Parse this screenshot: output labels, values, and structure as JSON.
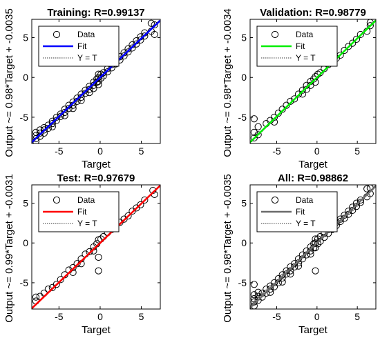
{
  "chart_data": [
    {
      "type": "scatter",
      "title": "Training: R=0.99137",
      "xlabel": "Target",
      "ylabel": "Output ~= 0.98*Target + -0.0035",
      "xlim": [
        -8.3,
        7.3
      ],
      "ylim": [
        -8.3,
        7.3
      ],
      "xticks": [
        "-5",
        "0",
        "5"
      ],
      "yticks": [
        "-5",
        "0",
        "5"
      ],
      "slope": 0.98,
      "intercept": -0.0035,
      "fit_color": "#0000ff",
      "legend": [
        "Data",
        "Fit",
        "Y = T"
      ],
      "legend_position": "top-left",
      "grid": false,
      "series": [
        {
          "name": "Data",
          "x": [
            -7.8,
            -7.8,
            -7.8,
            -7.8,
            -7.3,
            -7.3,
            -7.3,
            -6.8,
            -6.8,
            -6.8,
            -6.3,
            -6.3,
            -5.8,
            -5.8,
            -5.8,
            -5.3,
            -5.3,
            -4.8,
            -4.8,
            -4.3,
            -4.3,
            -4.3,
            -3.8,
            -3.8,
            -3.3,
            -3.3,
            -3.3,
            -2.8,
            -2.8,
            -2.3,
            -2.3,
            -2.3,
            -1.8,
            -1.8,
            -1.3,
            -1.3,
            -1.3,
            -0.8,
            -0.8,
            -0.8,
            -0.4,
            -0.4,
            -0.2,
            -0.2,
            -0.2,
            -0.2,
            0.1,
            0.1,
            0.4,
            0.4,
            0.9,
            0.9,
            1.4,
            1.4,
            1.9,
            1.9,
            2.4,
            2.4,
            2.9,
            2.9,
            3.4,
            3.4,
            3.9,
            3.9,
            4.4,
            4.4,
            4.9,
            4.9,
            5.4,
            5.4,
            6.2,
            6.2,
            6.6,
            6.6
          ],
          "y": [
            -6.9,
            -7.3,
            -7.7,
            -8.0,
            -6.6,
            -7.0,
            -7.4,
            -6.3,
            -6.6,
            -7.0,
            -6.0,
            -6.4,
            -5.5,
            -5.8,
            -6.2,
            -5.0,
            -5.4,
            -4.6,
            -4.9,
            -4.0,
            -4.4,
            -4.8,
            -3.5,
            -3.9,
            -3.1,
            -3.5,
            -3.9,
            -2.6,
            -3.0,
            -2.1,
            -2.5,
            -2.9,
            -1.6,
            -2.0,
            -1.1,
            -1.5,
            -1.9,
            -0.6,
            -1.0,
            -1.4,
            -0.2,
            -0.6,
            0.4,
            0.0,
            -0.5,
            -0.9,
            0.4,
            -0.1,
            0.6,
            0.2,
            1.1,
            0.7,
            1.6,
            1.2,
            2.1,
            1.7,
            2.6,
            2.2,
            3.1,
            2.7,
            3.6,
            3.2,
            4.1,
            3.7,
            4.6,
            4.2,
            5.1,
            4.7,
            5.6,
            5.2,
            6.8,
            5.8,
            6.6,
            5.4
          ]
        }
      ]
    },
    {
      "type": "scatter",
      "title": "Validation: R=0.98779",
      "xlabel": "Target",
      "ylabel": "Output ~= 0.98*Target + -0.0034",
      "xlim": [
        -8.3,
        7.3
      ],
      "ylim": [
        -8.3,
        7.3
      ],
      "xticks": [
        "-5",
        "0",
        "5"
      ],
      "yticks": [
        "-5",
        "0",
        "5"
      ],
      "slope": 0.98,
      "intercept": -0.0034,
      "fit_color": "#00ee00",
      "legend": [
        "Data",
        "Fit",
        "Y = T"
      ],
      "legend_position": "top-left",
      "grid": false,
      "series": [
        {
          "name": "Data",
          "x": [
            -7.8,
            -7.8,
            -7.8,
            -7.3,
            -7.3,
            -6.3,
            -5.8,
            -5.3,
            -5.3,
            -4.8,
            -4.3,
            -3.8,
            -3.3,
            -2.8,
            -2.3,
            -1.8,
            -1.8,
            -1.3,
            -1.3,
            -0.8,
            -0.8,
            -0.4,
            -0.2,
            -0.2,
            0.1,
            0.4,
            0.9,
            1.4,
            1.9,
            2.4,
            2.9,
            3.4,
            3.9,
            4.4,
            4.9,
            5.4,
            6.2,
            6.6,
            6.6
          ],
          "y": [
            -5.2,
            -6.9,
            -7.6,
            -6.2,
            -7.2,
            -5.8,
            -5.4,
            -5.0,
            -5.6,
            -4.5,
            -4.0,
            -3.5,
            -3.0,
            -2.7,
            -2.1,
            -1.6,
            -2.1,
            -1.0,
            -1.5,
            -0.5,
            -1.0,
            -0.2,
            0.1,
            -0.6,
            0.4,
            0.6,
            1.1,
            1.6,
            1.9,
            2.4,
            2.8,
            3.4,
            3.9,
            4.3,
            4.8,
            5.4,
            5.8,
            6.5,
            6.9
          ]
        }
      ]
    },
    {
      "type": "scatter",
      "title": "Test: R=0.97679",
      "xlabel": "Target",
      "ylabel": "Output ~= 0.99*Target + -0.0031",
      "xlim": [
        -8.3,
        7.3
      ],
      "ylim": [
        -8.3,
        7.3
      ],
      "xticks": [
        "-5",
        "0",
        "5"
      ],
      "yticks": [
        "-5",
        "0",
        "5"
      ],
      "slope": 0.99,
      "intercept": -0.0031,
      "fit_color": "#ff0000",
      "legend": [
        "Data",
        "Fit",
        "Y = T"
      ],
      "legend_position": "top-left",
      "grid": false,
      "series": [
        {
          "name": "Data",
          "x": [
            -7.8,
            -7.8,
            -7.3,
            -6.8,
            -6.3,
            -5.8,
            -5.3,
            -4.8,
            -4.3,
            -3.8,
            -3.3,
            -3.3,
            -2.8,
            -2.3,
            -2.3,
            -1.8,
            -1.3,
            -0.8,
            -0.8,
            -0.4,
            -0.2,
            -0.2,
            -0.2,
            0.1,
            0.4,
            0.9,
            1.4,
            1.9,
            2.4,
            2.9,
            3.4,
            3.9,
            4.4,
            4.9,
            5.4,
            6.4,
            6.6
          ],
          "y": [
            -6.8,
            -7.3,
            -6.7,
            -6.3,
            -5.8,
            -5.6,
            -5.2,
            -4.6,
            -4.0,
            -3.4,
            -3.1,
            -3.7,
            -2.6,
            -2.0,
            -2.6,
            -1.4,
            -1.1,
            -0.5,
            -1.0,
            -0.1,
            0.4,
            -1.8,
            -3.5,
            0.5,
            0.8,
            1.3,
            1.7,
            2.2,
            2.6,
            3.0,
            3.4,
            4.0,
            4.4,
            4.8,
            5.4,
            6.6,
            6.1
          ]
        }
      ]
    },
    {
      "type": "scatter",
      "title": "All: R=0.98862",
      "xlabel": "Target",
      "ylabel": "Output ~= 0.98*Target + -0.0035",
      "xlim": [
        -8.3,
        7.3
      ],
      "ylim": [
        -8.3,
        7.3
      ],
      "xticks": [
        "-5",
        "0",
        "5"
      ],
      "yticks": [
        "-5",
        "0",
        "5"
      ],
      "slope": 0.98,
      "intercept": -0.0035,
      "fit_color": "#6b6b6b",
      "legend": [
        "Data",
        "Fit",
        "Y = T"
      ],
      "legend_position": "top-left",
      "grid": false,
      "series": [
        {
          "name": "Data",
          "x": [
            -7.8,
            -7.8,
            -7.8,
            -7.8,
            -7.8,
            -7.3,
            -7.3,
            -7.3,
            -6.8,
            -6.8,
            -6.3,
            -6.3,
            -5.8,
            -5.8,
            -5.8,
            -5.3,
            -5.3,
            -4.8,
            -4.8,
            -4.3,
            -4.3,
            -4.3,
            -3.8,
            -3.8,
            -3.3,
            -3.3,
            -3.3,
            -2.8,
            -2.8,
            -2.3,
            -2.3,
            -2.3,
            -1.8,
            -1.8,
            -1.3,
            -1.3,
            -0.8,
            -0.8,
            -0.8,
            -0.4,
            -0.4,
            -0.2,
            -0.2,
            -0.2,
            -0.2,
            0.1,
            0.1,
            0.4,
            0.4,
            0.9,
            0.9,
            1.4,
            1.4,
            1.9,
            1.9,
            2.4,
            2.4,
            2.9,
            2.9,
            3.4,
            3.4,
            3.9,
            3.9,
            4.4,
            4.4,
            4.9,
            4.9,
            5.4,
            5.4,
            6.2,
            6.2,
            6.6,
            6.6
          ],
          "y": [
            -5.2,
            -6.5,
            -7.0,
            -7.4,
            -7.9,
            -6.2,
            -6.7,
            -7.2,
            -6.3,
            -6.8,
            -5.8,
            -6.3,
            -5.4,
            -5.8,
            -6.2,
            -5.0,
            -5.5,
            -4.5,
            -5.0,
            -4.0,
            -4.4,
            -4.9,
            -3.5,
            -3.9,
            -3.0,
            -3.5,
            -3.9,
            -2.6,
            -3.0,
            -2.0,
            -2.5,
            -2.9,
            -1.5,
            -2.0,
            -1.0,
            -1.5,
            -0.5,
            -1.0,
            -1.4,
            -0.1,
            -0.6,
            0.5,
            0.0,
            -0.6,
            -3.5,
            0.5,
            -0.1,
            0.8,
            0.2,
            1.2,
            0.7,
            1.7,
            1.2,
            2.1,
            1.7,
            2.6,
            2.2,
            3.0,
            2.7,
            3.5,
            3.1,
            4.0,
            3.6,
            4.5,
            4.1,
            5.0,
            4.6,
            5.4,
            5.1,
            6.8,
            5.8,
            6.9,
            6.2
          ]
        }
      ]
    }
  ]
}
